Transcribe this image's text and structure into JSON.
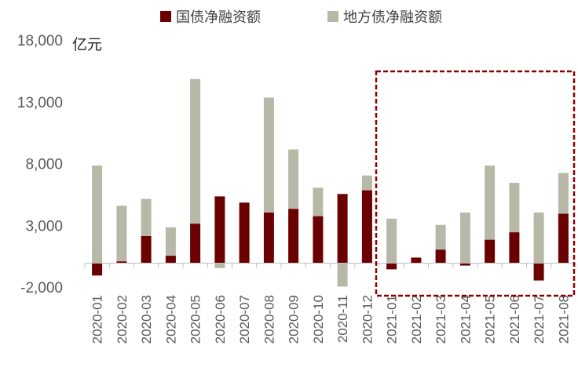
{
  "chart_data": {
    "type": "bar",
    "stacked": true,
    "title": "",
    "unit": "亿元",
    "categories": [
      "2020-01",
      "2020-02",
      "2020-03",
      "2020-04",
      "2020-05",
      "2020-06",
      "2020-07",
      "2020-08",
      "2020-09",
      "2020-10",
      "2020-11",
      "2020-12",
      "2021-01",
      "2021-02",
      "2021-03",
      "2021-04",
      "2021-05",
      "2021-06",
      "2021-07",
      "2021-08"
    ],
    "series": [
      {
        "name": "国债净融资额",
        "color": "#6b0000",
        "values": [
          -1000,
          150,
          2200,
          600,
          3200,
          5400,
          4900,
          4100,
          4400,
          3800,
          5600,
          5900,
          -500,
          450,
          1100,
          -200,
          1900,
          2500,
          -1400,
          4000
        ]
      },
      {
        "name": "地方债净融资额",
        "color": "#b8b8a8",
        "values": [
          7900,
          4500,
          3000,
          2300,
          11700,
          -400,
          0,
          9300,
          4800,
          2300,
          -1900,
          1200,
          3600,
          0,
          2000,
          4100,
          6000,
          4000,
          4100,
          3300
        ]
      }
    ],
    "ylim": [
      -2000,
      18000
    ],
    "yticks": [
      -2000,
      3000,
      8000,
      13000,
      18000
    ],
    "ytick_labels": [
      "-2,000",
      "3,000",
      "8,000",
      "13,000",
      "18,000"
    ],
    "legend_position": "top",
    "grid": false,
    "highlight": {
      "from": "2021-01",
      "to": "2021-08",
      "style": "dashed-box",
      "color": "#8b0000"
    }
  }
}
